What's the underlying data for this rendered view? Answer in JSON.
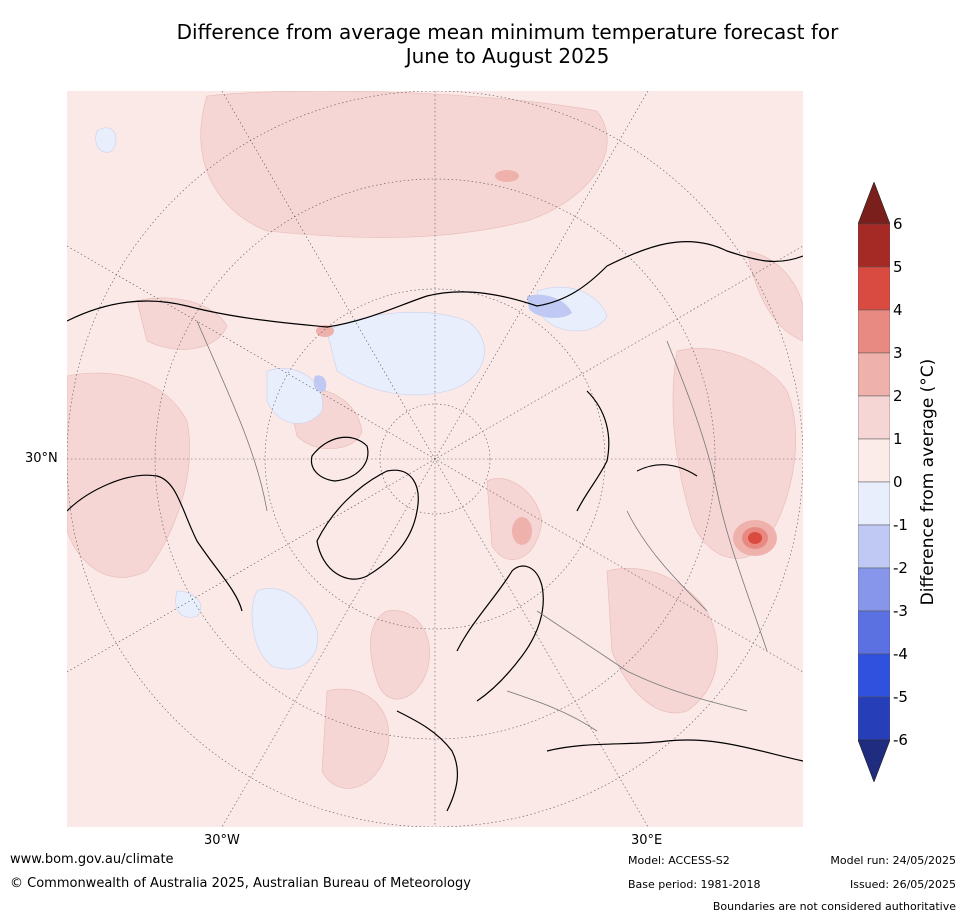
{
  "title": {
    "line1": "Difference from average mean minimum temperature forecast for",
    "line2": "June to August 2025"
  },
  "map": {
    "projection": "north polar stereographic",
    "lat_label": "30°N",
    "lon_labels": [
      "30°W",
      "30°E"
    ],
    "background_color": "#fbe9e7"
  },
  "colorbar": {
    "label": "Difference from average (°C)",
    "ticks": [
      "6",
      "5",
      "4",
      "3",
      "2",
      "1",
      "0",
      "-1",
      "-2",
      "-3",
      "-4",
      "-5",
      "-6"
    ],
    "bins": [
      {
        "range": "5 to 6",
        "color": "#a52a26"
      },
      {
        "range": "4 to 5",
        "color": "#d94b41"
      },
      {
        "range": "3 to 4",
        "color": "#e88a82"
      },
      {
        "range": "2 to 3",
        "color": "#efb1ab"
      },
      {
        "range": "1 to 2",
        "color": "#f5d6d4"
      },
      {
        "range": "0 to 1",
        "color": "#fbebe9"
      },
      {
        "range": "-1 to 0",
        "color": "#e8eefb"
      },
      {
        "range": "-2 to -1",
        "color": "#c0c9f3"
      },
      {
        "range": "-3 to -2",
        "color": "#8796ea"
      },
      {
        "range": "-4 to -3",
        "color": "#5b71e2"
      },
      {
        "range": "-5 to -4",
        "color": "#2f51de"
      },
      {
        "range": "-6 to -5",
        "color": "#263fb8"
      }
    ],
    "over_color": "#7a1f1b",
    "under_color": "#1f2c80"
  },
  "footer": {
    "website": "www.bom.gov.au/climate",
    "copyright": "© Commonwealth of Australia 2025, Australian Bureau of Meteorology",
    "model": "Model: ACCESS-S2",
    "base_period": "Base period: 1981-2018",
    "model_run": "Model run: 24/05/2025",
    "issued": "Issued: 26/05/2025",
    "disclaimer": "Boundaries are not considered authoritative"
  }
}
